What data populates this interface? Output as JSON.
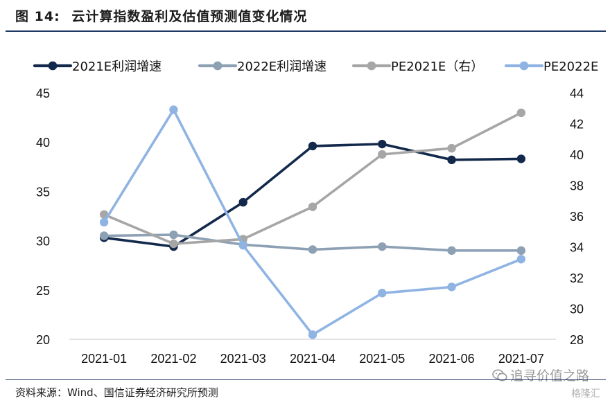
{
  "figure": {
    "label": "图",
    "number": "14:",
    "title": "云计算指数盈利及估值预测值变化情况"
  },
  "source_note": "资料来源：Wind、国信证券经济研究所预测",
  "watermark": {
    "text": "追寻价值之路",
    "brand": "格隆汇",
    "icon": "wechat-icon"
  },
  "colors": {
    "title_rule": "#1f3864",
    "series_2021E_growth": "#13294b",
    "series_2022E_growth": "#8da0b4",
    "series_PE2021E": "#a6a6a6",
    "series_PE2022E": "#8fb4e3"
  },
  "chart_data": {
    "type": "line",
    "categories": [
      "2021-01",
      "2021-02",
      "2021-03",
      "2021-04",
      "2021-05",
      "2021-06",
      "2021-07"
    ],
    "legend_position": "top",
    "grid": false,
    "y_left": {
      "ylim": [
        20,
        45
      ],
      "ticks": [
        "20",
        "25",
        "30",
        "35",
        "40",
        "45"
      ]
    },
    "y_right": {
      "ylim": [
        28,
        44
      ],
      "ticks": [
        "28",
        "30",
        "32",
        "34",
        "36",
        "38",
        "40",
        "42",
        "44"
      ]
    },
    "series": [
      {
        "name": "2021E利润增速",
        "axis": "left",
        "color": "#13294b",
        "values": [
          30.3,
          29.4,
          33.9,
          39.6,
          39.8,
          38.2,
          38.3
        ]
      },
      {
        "name": "2022E利润增速",
        "axis": "left",
        "color": "#8da0b4",
        "values": [
          30.5,
          30.6,
          29.6,
          29.1,
          29.4,
          29.0,
          29.0
        ]
      },
      {
        "name": "PE2021E（右）",
        "axis": "right",
        "color": "#a6a6a6",
        "values": [
          36.1,
          34.2,
          34.5,
          36.6,
          40.0,
          40.4,
          42.7
        ]
      },
      {
        "name": "PE2022E",
        "axis": "right",
        "color": "#8fb4e3",
        "values": [
          35.6,
          42.9,
          34.1,
          28.3,
          31.0,
          31.4,
          33.2
        ]
      }
    ]
  }
}
